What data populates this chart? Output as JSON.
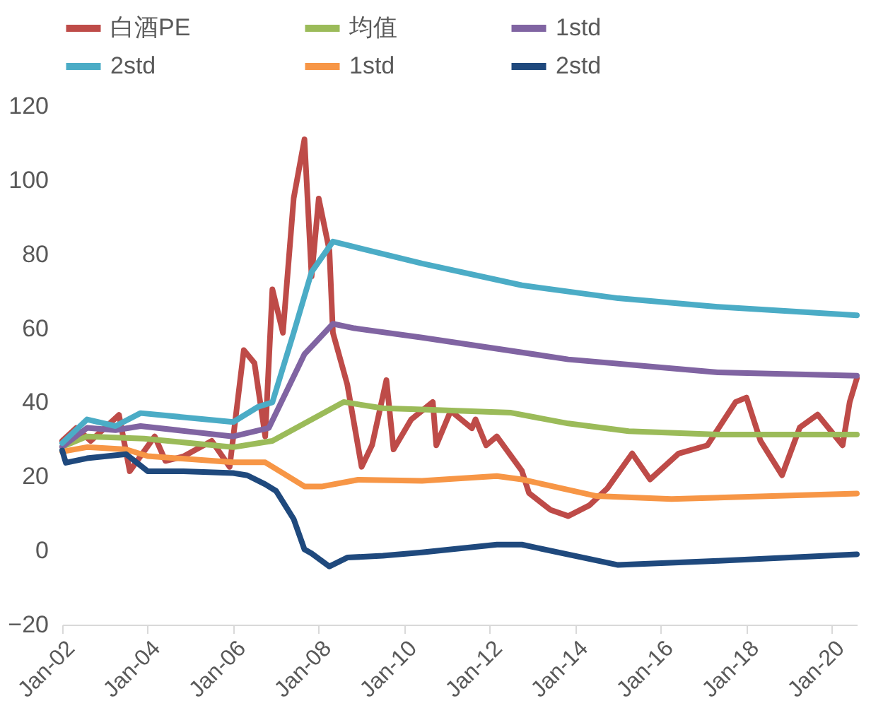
{
  "chart_data": {
    "type": "line",
    "legend": "top",
    "grid": false,
    "xlim": [
      "2002-01",
      "2020-08"
    ],
    "xticks": [
      {
        "value": "2002-01",
        "label": "Jan-02"
      },
      {
        "value": "2004-01",
        "label": "Jan-04"
      },
      {
        "value": "2006-01",
        "label": "Jan-06"
      },
      {
        "value": "2008-01",
        "label": "Jan-08"
      },
      {
        "value": "2010-01",
        "label": "Jan-10"
      },
      {
        "value": "2012-01",
        "label": "Jan-12"
      },
      {
        "value": "2014-01",
        "label": "Jan-14"
      },
      {
        "value": "2016-01",
        "label": "Jan-16"
      },
      {
        "value": "2018-01",
        "label": "Jan-18"
      },
      {
        "value": "2020-01",
        "label": "Jan-20"
      }
    ],
    "ylim": [
      -20,
      120
    ],
    "yticks": [
      -20,
      0,
      20,
      40,
      60,
      80,
      100,
      120
    ],
    "series": [
      {
        "name": "白酒PE",
        "color": "#be4b48",
        "x": [
          "2002-01",
          "2002-05",
          "2002-09",
          "2003-05",
          "2003-08",
          "2004-03",
          "2004-06",
          "2004-11",
          "2005-07",
          "2005-12",
          "2006-04",
          "2006-07",
          "2006-10",
          "2006-12",
          "2007-03",
          "2007-06",
          "2007-09",
          "2007-11",
          "2008-01",
          "2008-04",
          "2008-05",
          "2008-09",
          "2009-01",
          "2009-04",
          "2009-08",
          "2009-10",
          "2010-03",
          "2010-09",
          "2010-10",
          "2011-02",
          "2011-08",
          "2011-09",
          "2011-12",
          "2012-03",
          "2012-10",
          "2012-12",
          "2013-06",
          "2013-11",
          "2014-05",
          "2014-10",
          "2015-05",
          "2015-10",
          "2016-06",
          "2017-02",
          "2017-10",
          "2018-01",
          "2018-05",
          "2018-11",
          "2019-04",
          "2019-09",
          "2020-04",
          "2020-06",
          "2020-08"
        ],
        "values": [
          29.6,
          33.1,
          29.6,
          36.6,
          21.4,
          30.8,
          24.2,
          25.4,
          29.6,
          22.6,
          54.1,
          50.6,
          30.8,
          70.5,
          58.8,
          95.1,
          111,
          74,
          95,
          81,
          58.8,
          44.8,
          22.6,
          28.5,
          46,
          27.3,
          35.4,
          40.1,
          28.4,
          37.7,
          33,
          35.4,
          28.4,
          30.8,
          21.5,
          15.5,
          11,
          9.3,
          12.2,
          16.8,
          26.2,
          19.2,
          26.2,
          28.4,
          40.1,
          41.3,
          29.6,
          20.3,
          33.2,
          36.7,
          28.4,
          40.1,
          46.5
        ]
      },
      {
        "name": "均值",
        "color": "#9bbb59",
        "x": [
          "2002-01",
          "2002-08",
          "2003-12",
          "2006-01",
          "2006-12",
          "2007-09",
          "2008-08",
          "2009-07",
          "2010-06",
          "2012-07",
          "2013-11",
          "2015-04",
          "2017-05",
          "2020-08"
        ],
        "values": [
          28,
          30.8,
          30.2,
          27.9,
          29.6,
          34.3,
          40.1,
          38.4,
          38.1,
          37.2,
          34.3,
          32.2,
          31.3,
          31.3
        ]
      },
      {
        "name": "1std",
        "color": "#8064a2",
        "x": [
          "2002-01",
          "2002-08",
          "2003-04",
          "2003-11",
          "2006-01",
          "2006-11",
          "2007-09",
          "2008-05",
          "2008-11",
          "2010-06",
          "2013-11",
          "2017-05",
          "2020-08"
        ],
        "values": [
          28,
          33.1,
          32.5,
          33.6,
          30.8,
          33.1,
          53,
          61.2,
          60,
          57.5,
          51.6,
          48.1,
          47.2
        ]
      },
      {
        "name": "2std",
        "color": "#4bacc6",
        "x": [
          "2002-01",
          "2002-08",
          "2003-04",
          "2003-11",
          "2006-01",
          "2006-08",
          "2006-12",
          "2007-06",
          "2007-11",
          "2008-05",
          "2008-10",
          "2010-06",
          "2012-10",
          "2015-01",
          "2017-05",
          "2020-08"
        ],
        "values": [
          29,
          35.4,
          33.6,
          37.1,
          34.7,
          38.8,
          40,
          58.8,
          75.2,
          83.4,
          82.2,
          77.5,
          71.6,
          68.1,
          65.8,
          63.5
        ]
      },
      {
        "name": "1std",
        "color": "#f79646",
        "x": [
          "2002-01",
          "2002-08",
          "2003-07",
          "2004-01",
          "2006-01",
          "2006-10",
          "2007-03",
          "2007-09",
          "2008-02",
          "2008-12",
          "2010-06",
          "2012-03",
          "2012-10",
          "2014-07",
          "2016-04",
          "2020-08"
        ],
        "values": [
          26.7,
          27.9,
          27.3,
          25.5,
          23.8,
          23.8,
          20.9,
          17.3,
          17.3,
          19.1,
          18.8,
          20.1,
          19.2,
          14.7,
          13.9,
          15.4
        ]
      },
      {
        "name": "2std",
        "color": "#1f497d",
        "x": [
          "2002-01",
          "2002-02",
          "2002-08",
          "2003-07",
          "2003-10",
          "2004-01",
          "2004-11",
          "2006-01",
          "2006-05",
          "2006-10",
          "2007-01",
          "2007-06",
          "2007-09",
          "2007-11",
          "2008-04",
          "2008-09",
          "2009-07",
          "2010-06",
          "2012-03",
          "2012-10",
          "2015-01",
          "2017-05",
          "2020-08"
        ],
        "values": [
          27,
          23.7,
          24.9,
          26,
          23.7,
          21.4,
          21.4,
          20.9,
          20.3,
          17.9,
          16.1,
          8.5,
          0.3,
          -0.8,
          -4.3,
          -1.9,
          -1.4,
          -0.5,
          1.6,
          1.6,
          -3.9,
          -2.8,
          -1
        ]
      }
    ]
  }
}
